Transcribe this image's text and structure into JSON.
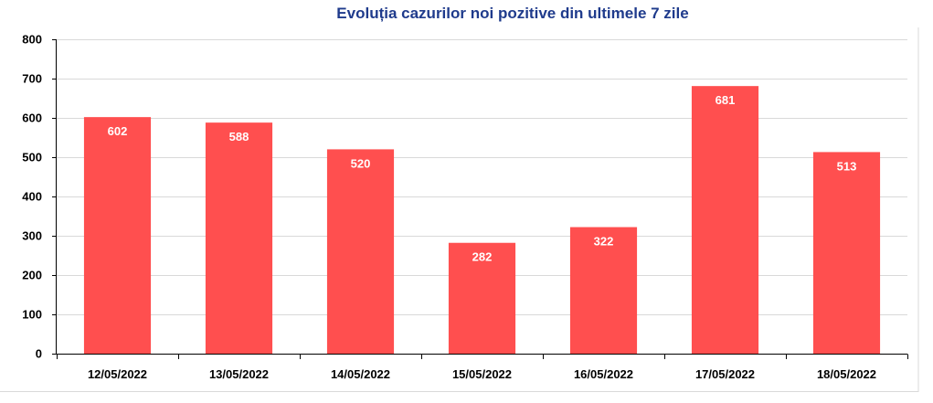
{
  "chart_data": {
    "type": "bar",
    "title": "Evoluția cazurilor noi pozitive din ultimele 7 zile",
    "xlabel": "",
    "ylabel": "",
    "categories": [
      "12/05/2022",
      "13/05/2022",
      "14/05/2022",
      "15/05/2022",
      "16/05/2022",
      "17/05/2022",
      "18/05/2022"
    ],
    "values": [
      602,
      588,
      520,
      282,
      322,
      681,
      513
    ],
    "ylim": [
      0,
      800
    ],
    "yticks": [
      0,
      100,
      200,
      300,
      400,
      500,
      600,
      700,
      800
    ],
    "grid": true,
    "legend": "none",
    "colors": {
      "bar": "#ff4f4f",
      "title": "#1f3b8c",
      "grid": "#d9d9d9",
      "axis": "#000000",
      "data_label": "#ffffff",
      "frame": "#d9d9d9"
    }
  }
}
